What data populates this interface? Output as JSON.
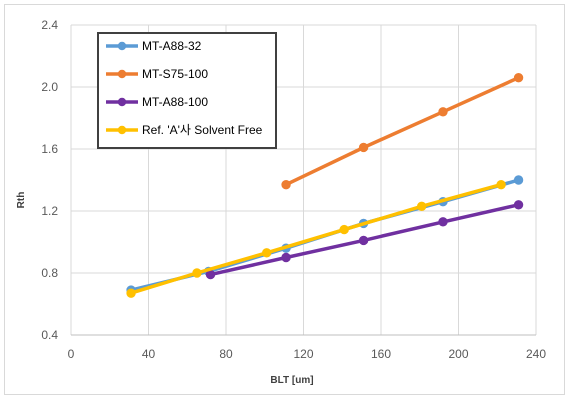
{
  "chart_data": {
    "type": "line",
    "title": "",
    "xlabel": "BLT [um]",
    "ylabel": "Rth",
    "xlim": [
      0,
      240
    ],
    "ylim": [
      0.4,
      2.4
    ],
    "xticks": [
      0,
      40,
      80,
      120,
      160,
      200,
      240
    ],
    "yticks": [
      0.4,
      0.8,
      1.2,
      1.6,
      2.0,
      2.4
    ],
    "xtick_labels": [
      "0",
      "40",
      "80",
      "120",
      "160",
      "200",
      "240"
    ],
    "ytick_labels": [
      "0.4",
      "0.8",
      "1.2",
      "1.6",
      "2.0",
      "2.4"
    ],
    "grid": "vertical and horizontal",
    "legend_position": "top-left",
    "series": [
      {
        "name": "MT-A88-32",
        "color": "#5B9BD5",
        "x": [
          31,
          71,
          111,
          151,
          192,
          231
        ],
        "y": [
          0.69,
          0.81,
          0.96,
          1.12,
          1.26,
          1.4
        ]
      },
      {
        "name": "MT-S75-100",
        "color": "#ED7D31",
        "x": [
          111,
          151,
          192,
          231
        ],
        "y": [
          1.37,
          1.61,
          1.84,
          2.06
        ]
      },
      {
        "name": "MT-A88-100",
        "color": "#7030A0",
        "x": [
          72,
          111,
          151,
          192,
          231
        ],
        "y": [
          0.79,
          0.9,
          1.01,
          1.13,
          1.24
        ]
      },
      {
        "name": "Ref. 'A'사 Solvent Free",
        "color": "#FFC000",
        "x": [
          31,
          65,
          101,
          141,
          181,
          222
        ],
        "y": [
          0.67,
          0.8,
          0.93,
          1.08,
          1.23,
          1.37
        ]
      }
    ]
  }
}
